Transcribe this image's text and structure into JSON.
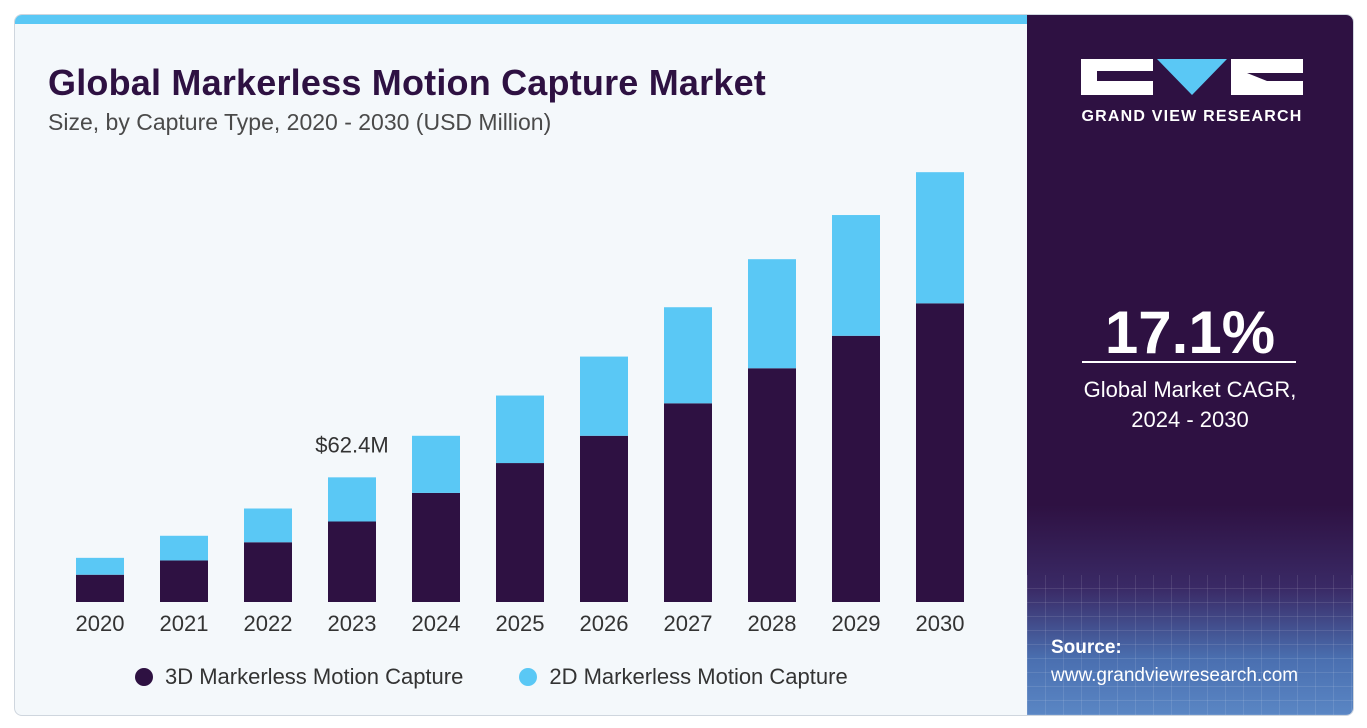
{
  "header": {
    "title": "Global Markerless Motion Capture Market",
    "subtitle": "Size, by Capture Type, 2020 - 2030 (USD Million)"
  },
  "chart_data": {
    "type": "bar",
    "stacked": true,
    "title": "Global Markerless Motion Capture Market",
    "subtitle": "Size, by Capture Type, 2020 - 2030 (USD Million)",
    "categories": [
      "2020",
      "2021",
      "2022",
      "2023",
      "2024",
      "2025",
      "2026",
      "2027",
      "2028",
      "2029",
      "2030"
    ],
    "series": [
      {
        "name": "3D Markerless Motion Capture",
        "color": "#2e1142",
        "values": [
          21,
          32,
          46,
          62,
          84,
          107,
          128,
          153,
          180,
          205,
          230
        ]
      },
      {
        "name": "2D Markerless Motion Capture",
        "color": "#5ac8f5",
        "values": [
          13,
          19,
          26,
          34,
          44,
          52,
          61,
          74,
          84,
          93,
          101
        ]
      }
    ],
    "annotations": [
      {
        "category": "2023",
        "text": "$62.4M"
      }
    ],
    "ylim": [
      0,
      345
    ],
    "grid": false,
    "legend_position": "bottom"
  },
  "legend": [
    {
      "label": "3D Markerless Motion Capture",
      "color": "#2e1142"
    },
    {
      "label": "2D Markerless Motion Capture",
      "color": "#5ac8f5"
    }
  ],
  "brand": {
    "name": "GRAND VIEW RESEARCH",
    "logo_icon": "gvr-logo-icon"
  },
  "cagr": {
    "value": "17.1%",
    "label_line1": "Global Market CAGR,",
    "label_line2": "2024 - 2030"
  },
  "source": {
    "label": "Source:",
    "url": "www.grandviewresearch.com"
  }
}
